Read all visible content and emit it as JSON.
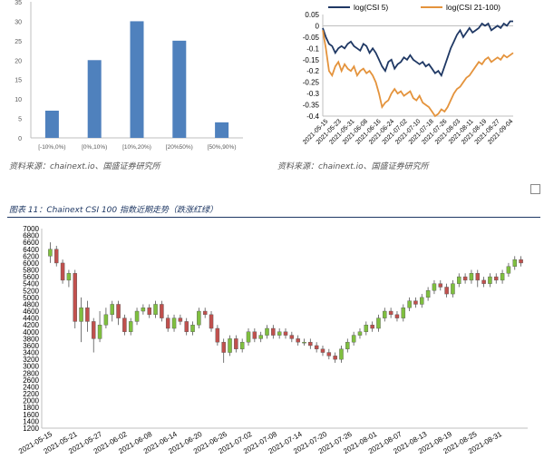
{
  "figure_caption": "图表 11：Chainext CSI 100 指数近期走势（跌涨红绿）",
  "source_left": "资料来源：chainext.io、国盛证券研究所",
  "source_right": "资料来源：chainext.io、国盛证券研究所",
  "colors": {
    "bar": "#4f81bd",
    "log5": "#1f3864",
    "log21": "#e4933c",
    "up": "#7fbf3f",
    "down": "#c0504d"
  },
  "chart_data": [
    {
      "type": "bar",
      "categories": [
        "[-10%,0%)",
        "[0%,10%)",
        "[10%,20%)",
        "[20%50%)",
        "[50%,90%)"
      ],
      "values": [
        7,
        20,
        30,
        25,
        4
      ],
      "ylim": [
        0,
        35
      ],
      "yticks": [
        0,
        5,
        10,
        15,
        20,
        25,
        30,
        35
      ],
      "grid": false
    },
    {
      "type": "line",
      "ylim": [
        -0.4,
        0.05
      ],
      "yticks": [
        "0.05",
        "0",
        "-0.05",
        "-0.1",
        "-0.15",
        "-0.2",
        "-0.25",
        "-0.3",
        "-0.35",
        "-0.4"
      ],
      "xticks": [
        "2021-05-15",
        "2021-05-23",
        "2021-05-31",
        "2021-06-08",
        "2021-06-16",
        "2021-06-24",
        "2021-07-02",
        "2021-07-10",
        "2021-07-18",
        "2021-07-26",
        "2021-08-03",
        "2021-08-11",
        "2021-08-19",
        "2021-08-27",
        "2021-09-04"
      ],
      "legend_position": "top",
      "series": [
        {
          "name": "log(CSI 5)",
          "values": [
            -0.01,
            -0.05,
            -0.08,
            -0.09,
            -0.12,
            -0.1,
            -0.09,
            -0.1,
            -0.08,
            -0.07,
            -0.09,
            -0.1,
            -0.11,
            -0.08,
            -0.09,
            -0.12,
            -0.1,
            -0.12,
            -0.15,
            -0.18,
            -0.2,
            -0.16,
            -0.15,
            -0.19,
            -0.17,
            -0.16,
            -0.14,
            -0.15,
            -0.13,
            -0.15,
            -0.16,
            -0.17,
            -0.16,
            -0.18,
            -0.17,
            -0.19,
            -0.21,
            -0.2,
            -0.22,
            -0.18,
            -0.14,
            -0.1,
            -0.07,
            -0.04,
            -0.02,
            -0.05,
            -0.03,
            -0.01,
            -0.03,
            -0.02,
            -0.01,
            0.01,
            0.0,
            0.01,
            -0.02,
            -0.01,
            0.0,
            -0.01,
            0.01,
            0.0,
            0.02,
            0.02
          ]
        },
        {
          "name": "log(CSI 21-100)",
          "values": [
            -0.02,
            -0.1,
            -0.2,
            -0.22,
            -0.18,
            -0.16,
            -0.2,
            -0.17,
            -0.19,
            -0.2,
            -0.18,
            -0.22,
            -0.2,
            -0.19,
            -0.21,
            -0.2,
            -0.22,
            -0.25,
            -0.3,
            -0.36,
            -0.34,
            -0.33,
            -0.3,
            -0.28,
            -0.3,
            -0.29,
            -0.31,
            -0.3,
            -0.29,
            -0.32,
            -0.33,
            -0.31,
            -0.34,
            -0.35,
            -0.36,
            -0.38,
            -0.4,
            -0.39,
            -0.37,
            -0.38,
            -0.36,
            -0.33,
            -0.3,
            -0.28,
            -0.27,
            -0.25,
            -0.23,
            -0.22,
            -0.2,
            -0.18,
            -0.16,
            -0.17,
            -0.15,
            -0.14,
            -0.16,
            -0.15,
            -0.14,
            -0.15,
            -0.13,
            -0.14,
            -0.13,
            -0.12
          ]
        }
      ]
    },
    {
      "type": "candlestick",
      "ylim": [
        1200,
        7000
      ],
      "yticks": [
        1200,
        1400,
        1600,
        1800,
        2000,
        2200,
        2400,
        2600,
        2800,
        3000,
        3200,
        3400,
        3600,
        3800,
        4000,
        4200,
        4400,
        4600,
        4800,
        5000,
        5200,
        5400,
        5600,
        5800,
        6000,
        6200,
        6400,
        6600,
        6800,
        7000
      ],
      "xticks": [
        "2021-05-15",
        "2021-05-21",
        "2021-05-27",
        "2021-06-02",
        "2021-06-08",
        "2021-06-14",
        "2021-06-20",
        "2021-06-26",
        "2021-07-02",
        "2021-07-08",
        "2021-07-14",
        "2021-07-20",
        "2021-07-26",
        "2021-08-01",
        "2021-08-07",
        "2021-08-13",
        "2021-08-19",
        "2021-08-25",
        "2021-08-31"
      ],
      "candles": [
        {
          "o": 6200,
          "c": 6400,
          "h": 6600,
          "l": 6000
        },
        {
          "o": 6400,
          "c": 6000,
          "h": 6500,
          "l": 5900
        },
        {
          "o": 6000,
          "c": 5500,
          "h": 6100,
          "l": 5400
        },
        {
          "o": 5500,
          "c": 5700,
          "h": 5800,
          "l": 5300
        },
        {
          "o": 5700,
          "c": 4300,
          "h": 5800,
          "l": 4100
        },
        {
          "o": 4300,
          "c": 4700,
          "h": 5000,
          "l": 3700
        },
        {
          "o": 4700,
          "c": 4300,
          "h": 4900,
          "l": 4000
        },
        {
          "o": 4300,
          "c": 3800,
          "h": 4400,
          "l": 3400
        },
        {
          "o": 3800,
          "c": 4200,
          "h": 4600,
          "l": 3700
        },
        {
          "o": 4200,
          "c": 4500,
          "h": 4700,
          "l": 4100
        },
        {
          "o": 4500,
          "c": 4800,
          "h": 4900,
          "l": 4300
        },
        {
          "o": 4800,
          "c": 4400,
          "h": 4900,
          "l": 4200
        },
        {
          "o": 4400,
          "c": 4000,
          "h": 4500,
          "l": 3900
        },
        {
          "o": 4000,
          "c": 4300,
          "h": 4400,
          "l": 3900
        },
        {
          "o": 4300,
          "c": 4600,
          "h": 4700,
          "l": 4200
        },
        {
          "o": 4600,
          "c": 4700,
          "h": 4800,
          "l": 4500
        },
        {
          "o": 4700,
          "c": 4500,
          "h": 4800,
          "l": 4400
        },
        {
          "o": 4500,
          "c": 4800,
          "h": 4900,
          "l": 4400
        },
        {
          "o": 4800,
          "c": 4400,
          "h": 4900,
          "l": 4300
        },
        {
          "o": 4400,
          "c": 4100,
          "h": 4500,
          "l": 4000
        },
        {
          "o": 4100,
          "c": 4400,
          "h": 4500,
          "l": 4000
        },
        {
          "o": 4400,
          "c": 4300,
          "h": 4500,
          "l": 4200
        },
        {
          "o": 4300,
          "c": 4000,
          "h": 4400,
          "l": 3900
        },
        {
          "o": 4000,
          "c": 4200,
          "h": 4300,
          "l": 3900
        },
        {
          "o": 4200,
          "c": 4600,
          "h": 4700,
          "l": 4100
        },
        {
          "o": 4600,
          "c": 4500,
          "h": 4700,
          "l": 4400
        },
        {
          "o": 4500,
          "c": 4100,
          "h": 4600,
          "l": 4000
        },
        {
          "o": 4100,
          "c": 3700,
          "h": 4200,
          "l": 3600
        },
        {
          "o": 3700,
          "c": 3400,
          "h": 3800,
          "l": 3100
        },
        {
          "o": 3400,
          "c": 3800,
          "h": 3900,
          "l": 3300
        },
        {
          "o": 3800,
          "c": 3500,
          "h": 3900,
          "l": 3400
        },
        {
          "o": 3500,
          "c": 3700,
          "h": 3800,
          "l": 3400
        },
        {
          "o": 3700,
          "c": 4000,
          "h": 4100,
          "l": 3600
        },
        {
          "o": 4000,
          "c": 3800,
          "h": 4100,
          "l": 3700
        },
        {
          "o": 3800,
          "c": 3900,
          "h": 4000,
          "l": 3700
        },
        {
          "o": 3900,
          "c": 4100,
          "h": 4200,
          "l": 3800
        },
        {
          "o": 4100,
          "c": 3900,
          "h": 4200,
          "l": 3800
        },
        {
          "o": 3900,
          "c": 4000,
          "h": 4100,
          "l": 3800
        },
        {
          "o": 4000,
          "c": 3900,
          "h": 4100,
          "l": 3800
        },
        {
          "o": 3900,
          "c": 3800,
          "h": 4000,
          "l": 3700
        },
        {
          "o": 3800,
          "c": 3700,
          "h": 3900,
          "l": 3600
        },
        {
          "o": 3700,
          "c": 3700,
          "h": 3800,
          "l": 3600
        },
        {
          "o": 3700,
          "c": 3600,
          "h": 3800,
          "l": 3500
        },
        {
          "o": 3600,
          "c": 3500,
          "h": 3700,
          "l": 3400
        },
        {
          "o": 3500,
          "c": 3400,
          "h": 3600,
          "l": 3300
        },
        {
          "o": 3400,
          "c": 3300,
          "h": 3500,
          "l": 3200
        },
        {
          "o": 3300,
          "c": 3200,
          "h": 3400,
          "l": 3100
        },
        {
          "o": 3200,
          "c": 3500,
          "h": 3600,
          "l": 3100
        },
        {
          "o": 3500,
          "c": 3700,
          "h": 3800,
          "l": 3400
        },
        {
          "o": 3700,
          "c": 3900,
          "h": 4000,
          "l": 3600
        },
        {
          "o": 3900,
          "c": 4000,
          "h": 4100,
          "l": 3800
        },
        {
          "o": 4000,
          "c": 4200,
          "h": 4300,
          "l": 3900
        },
        {
          "o": 4200,
          "c": 4100,
          "h": 4300,
          "l": 4000
        },
        {
          "o": 4100,
          "c": 4400,
          "h": 4500,
          "l": 4000
        },
        {
          "o": 4400,
          "c": 4600,
          "h": 4700,
          "l": 4300
        },
        {
          "o": 4600,
          "c": 4500,
          "h": 4700,
          "l": 4400
        },
        {
          "o": 4500,
          "c": 4400,
          "h": 4600,
          "l": 4300
        },
        {
          "o": 4400,
          "c": 4700,
          "h": 4800,
          "l": 4300
        },
        {
          "o": 4700,
          "c": 4900,
          "h": 5000,
          "l": 4600
        },
        {
          "o": 4900,
          "c": 4800,
          "h": 5000,
          "l": 4700
        },
        {
          "o": 4800,
          "c": 5000,
          "h": 5100,
          "l": 4700
        },
        {
          "o": 5000,
          "c": 5200,
          "h": 5300,
          "l": 4900
        },
        {
          "o": 5200,
          "c": 5400,
          "h": 5500,
          "l": 5100
        },
        {
          "o": 5400,
          "c": 5300,
          "h": 5500,
          "l": 5200
        },
        {
          "o": 5300,
          "c": 5100,
          "h": 5400,
          "l": 5000
        },
        {
          "o": 5100,
          "c": 5400,
          "h": 5500,
          "l": 5000
        },
        {
          "o": 5400,
          "c": 5600,
          "h": 5700,
          "l": 5300
        },
        {
          "o": 5600,
          "c": 5500,
          "h": 5700,
          "l": 5400
        },
        {
          "o": 5500,
          "c": 5700,
          "h": 5800,
          "l": 5400
        },
        {
          "o": 5700,
          "c": 5500,
          "h": 5800,
          "l": 5300
        },
        {
          "o": 5500,
          "c": 5400,
          "h": 5600,
          "l": 5300
        },
        {
          "o": 5400,
          "c": 5600,
          "h": 5700,
          "l": 5300
        },
        {
          "o": 5600,
          "c": 5500,
          "h": 5700,
          "l": 5400
        },
        {
          "o": 5500,
          "c": 5700,
          "h": 5800,
          "l": 5400
        },
        {
          "o": 5700,
          "c": 5900,
          "h": 6000,
          "l": 5600
        },
        {
          "o": 5900,
          "c": 6100,
          "h": 6200,
          "l": 5800
        },
        {
          "o": 6100,
          "c": 6000,
          "h": 6200,
          "l": 5900
        }
      ]
    }
  ]
}
